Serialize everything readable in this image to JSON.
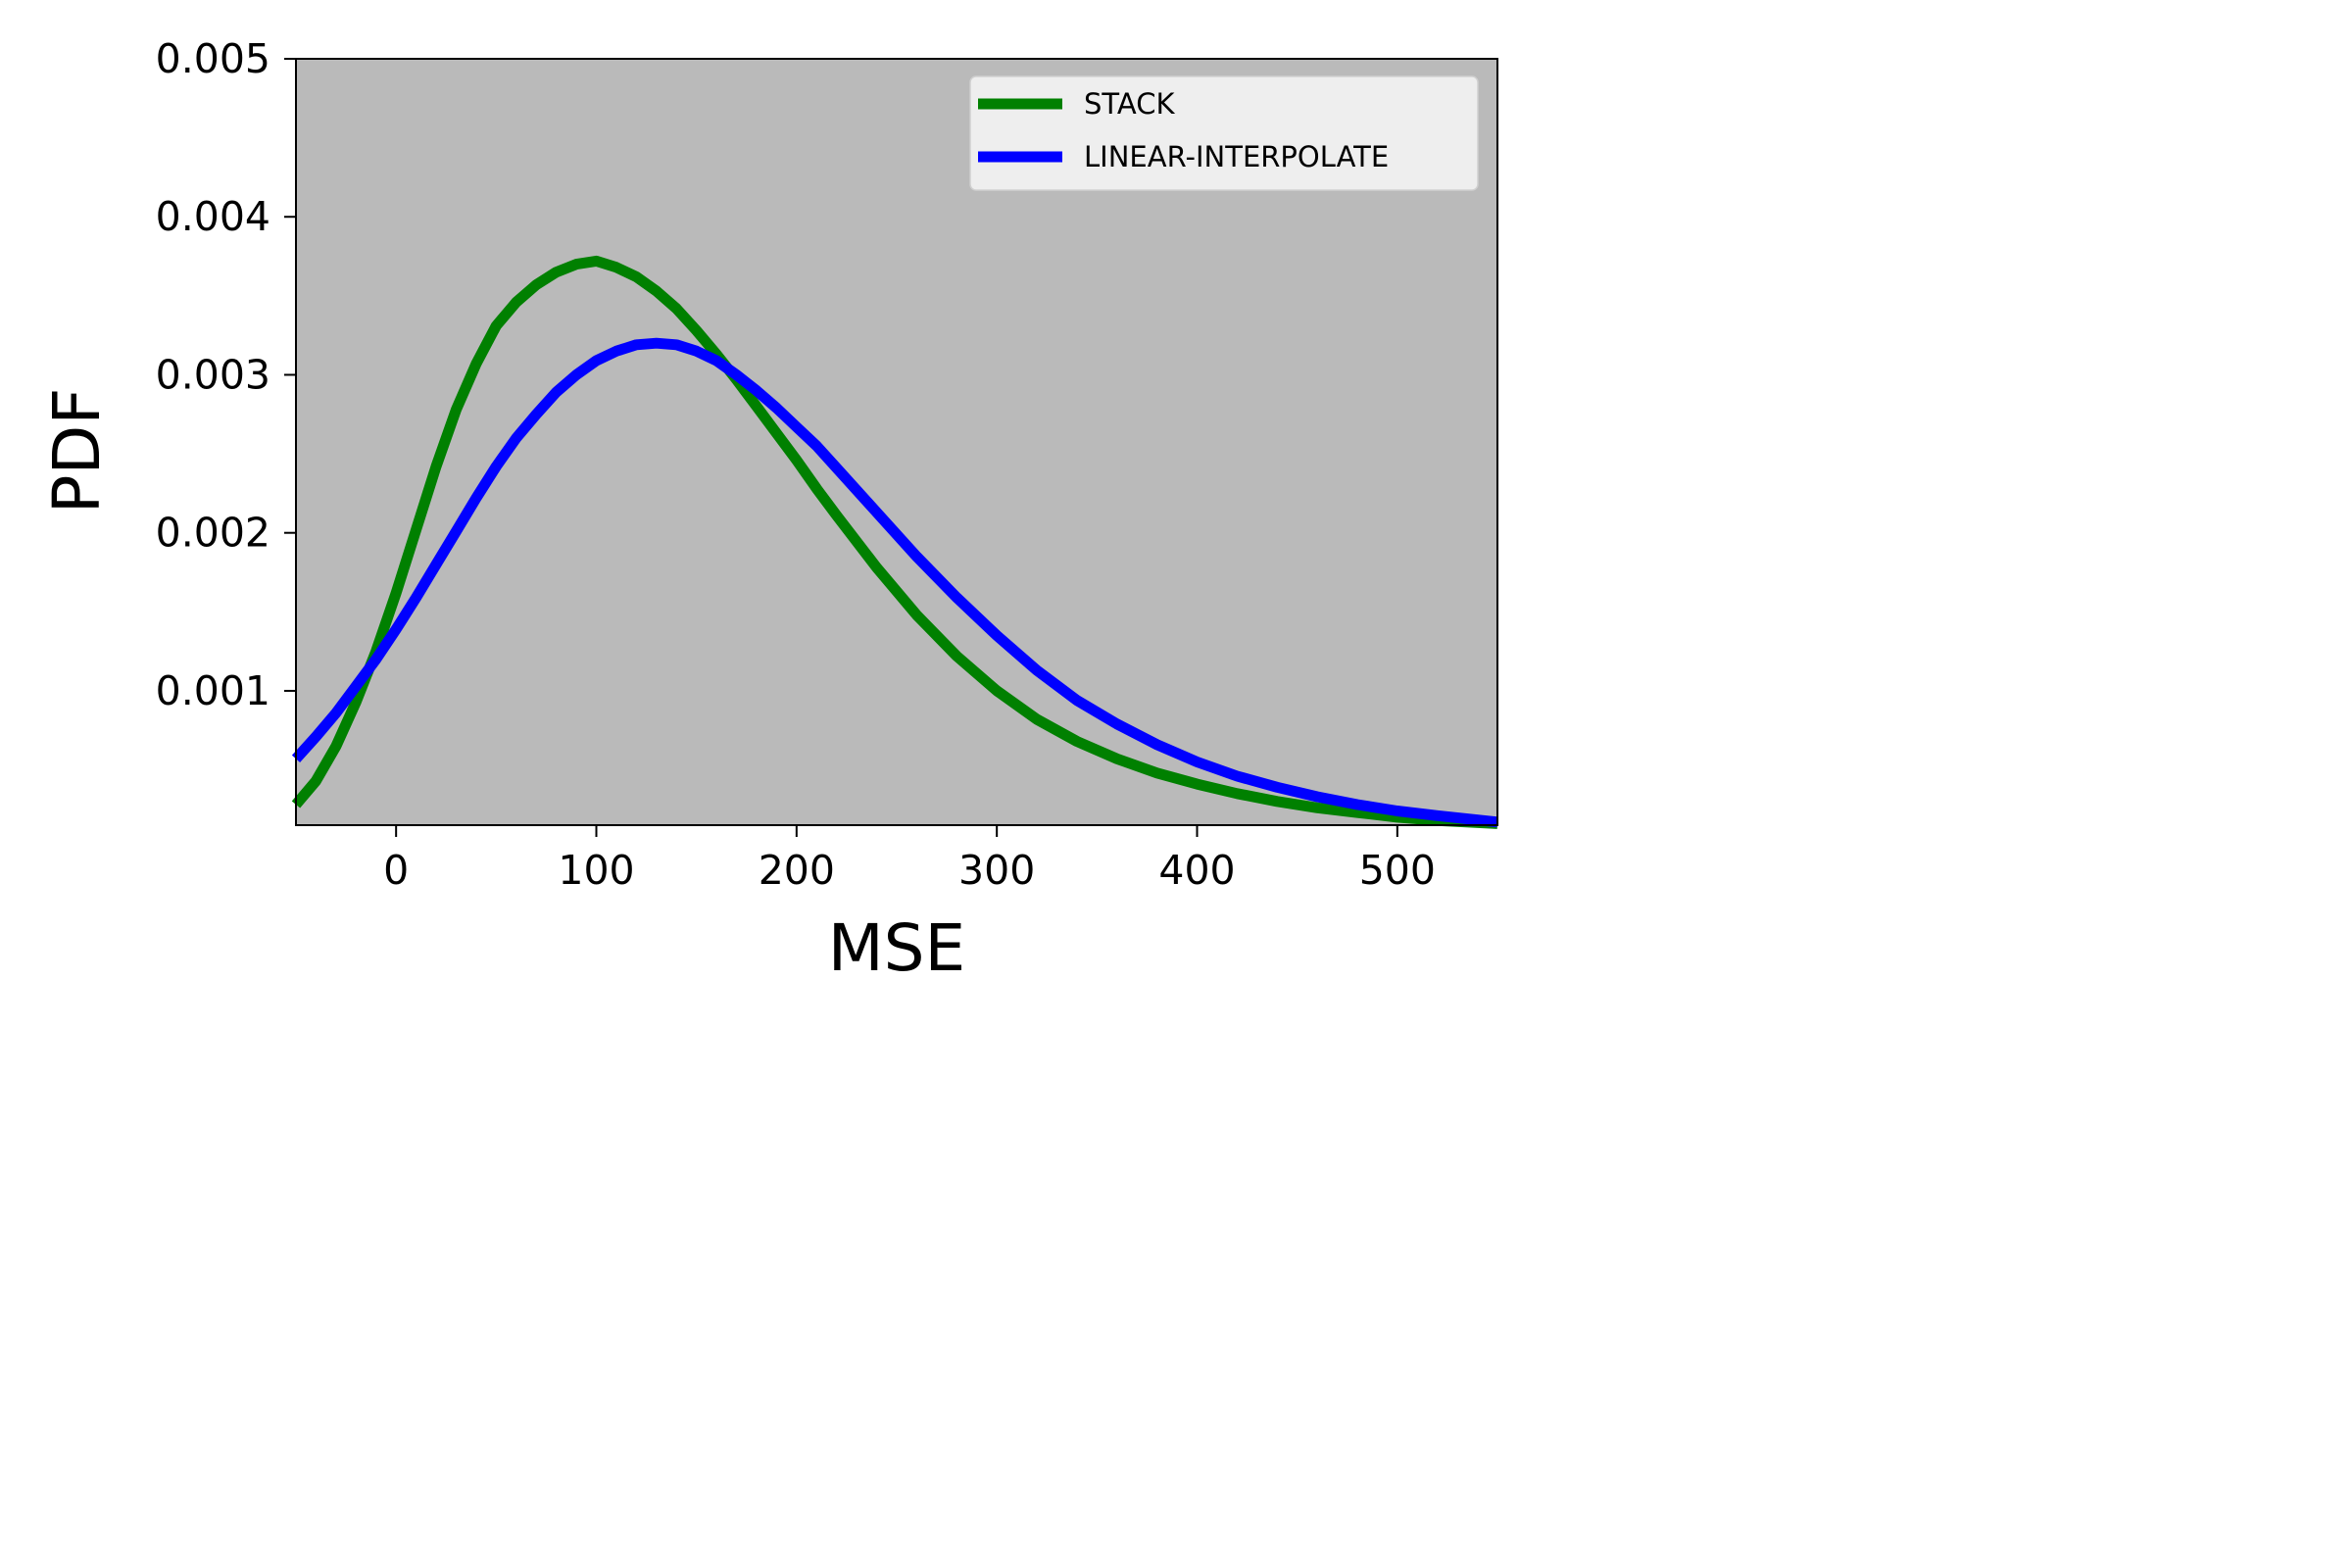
{
  "chart_data": {
    "type": "line",
    "xlabel": "MSE",
    "ylabel": "PDF",
    "xlim": [
      -50,
      550
    ],
    "ylim": [
      0.00015,
      0.005
    ],
    "xticks": [
      0,
      100,
      200,
      300,
      400,
      500
    ],
    "xtick_labels": [
      "0",
      "100",
      "200",
      "300",
      "400",
      "500"
    ],
    "yticks": [
      0.001,
      0.002,
      0.003,
      0.004,
      0.005
    ],
    "ytick_labels": [
      "0.001",
      "0.002",
      "0.003",
      "0.004",
      "0.005"
    ],
    "background": "#bababa",
    "grid": false,
    "legend_position": "top-right",
    "series": [
      {
        "name": "STACK",
        "color": "#008000",
        "x": [
          -50,
          -40,
          -30,
          -20,
          -10,
          0,
          10,
          20,
          30,
          40,
          50,
          60,
          70,
          80,
          90,
          100,
          110,
          120,
          130,
          140,
          150,
          160,
          170,
          180,
          190,
          200,
          210,
          220,
          240,
          260,
          280,
          300,
          320,
          340,
          360,
          380,
          400,
          420,
          440,
          460,
          480,
          500,
          520,
          550
        ],
        "y": [
          0.00028,
          0.00043,
          0.00065,
          0.00093,
          0.00125,
          0.00162,
          0.00202,
          0.00242,
          0.00278,
          0.00307,
          0.00331,
          0.00346,
          0.00357,
          0.00365,
          0.0037,
          0.00372,
          0.00368,
          0.00362,
          0.00353,
          0.00342,
          0.00328,
          0.00313,
          0.00297,
          0.0028,
          0.00263,
          0.00246,
          0.00228,
          0.00211,
          0.00178,
          0.00148,
          0.00122,
          0.001,
          0.00082,
          0.00068,
          0.00057,
          0.00048,
          0.00041,
          0.00035,
          0.0003,
          0.00026,
          0.00023,
          0.0002,
          0.00018,
          0.00016
        ]
      },
      {
        "name": "LINEAR-INTERPOLATE",
        "color": "#0000ff",
        "x": [
          -50,
          -40,
          -30,
          -20,
          -10,
          0,
          10,
          20,
          30,
          40,
          50,
          60,
          70,
          80,
          90,
          100,
          110,
          120,
          130,
          140,
          150,
          160,
          170,
          180,
          190,
          200,
          210,
          220,
          240,
          260,
          280,
          300,
          320,
          340,
          360,
          380,
          400,
          420,
          440,
          460,
          480,
          500,
          520,
          550
        ],
        "y": [
          0.00057,
          0.00071,
          0.00086,
          0.00103,
          0.0012,
          0.00139,
          0.00159,
          0.0018,
          0.00201,
          0.00222,
          0.00242,
          0.0026,
          0.00275,
          0.00289,
          0.003,
          0.00309,
          0.00315,
          0.00319,
          0.0032,
          0.00319,
          0.00315,
          0.00309,
          0.003,
          0.0029,
          0.00279,
          0.00267,
          0.00255,
          0.00241,
          0.00213,
          0.00185,
          0.00159,
          0.00135,
          0.00113,
          0.00094,
          0.00079,
          0.00066,
          0.00055,
          0.00046,
          0.00039,
          0.00033,
          0.00028,
          0.00024,
          0.00021,
          0.00017
        ]
      }
    ]
  }
}
